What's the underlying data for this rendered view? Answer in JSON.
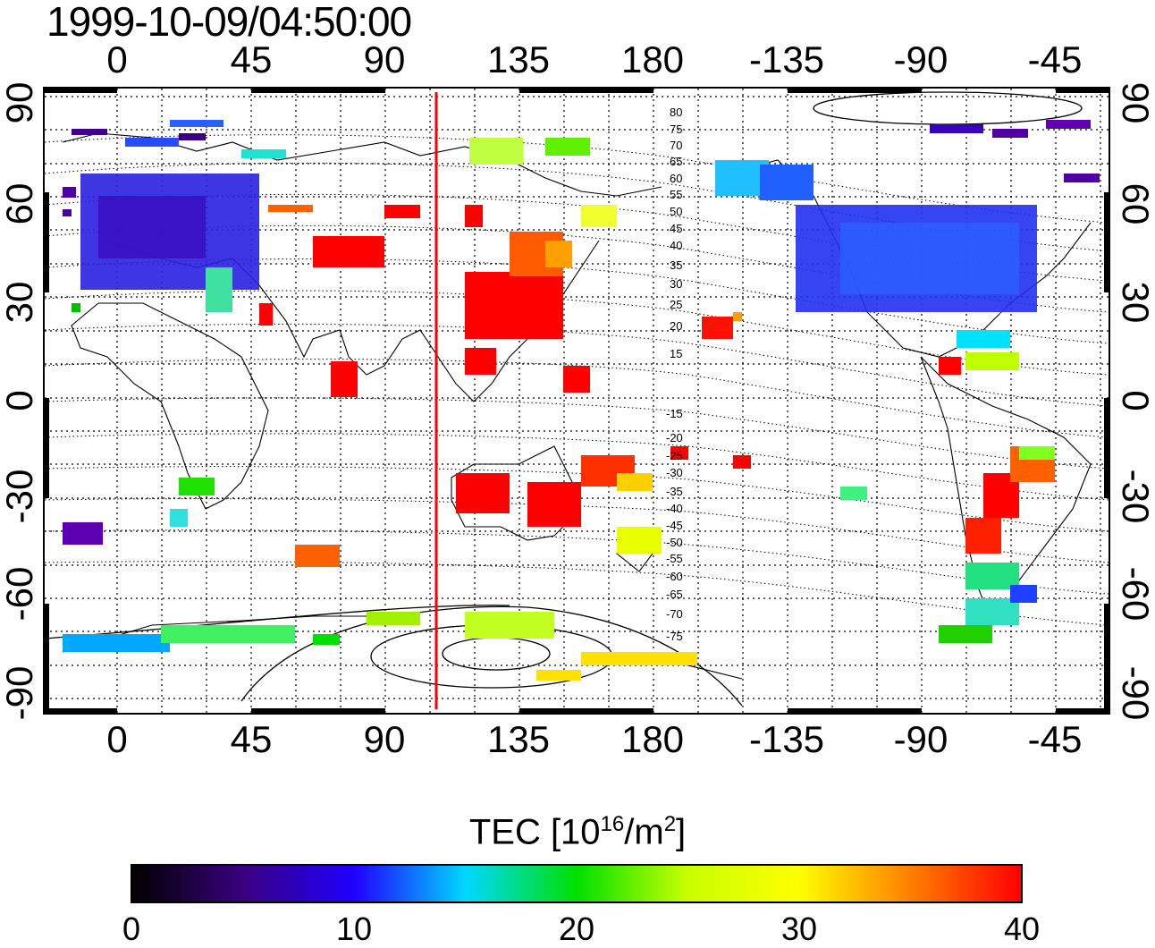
{
  "timestamp": "1999-10-09/04:50:00",
  "map": {
    "lon_ticks": [
      "0",
      "45",
      "90",
      "135",
      "180",
      "-135",
      "-90",
      "-45"
    ],
    "lat_ticks": [
      "90",
      "60",
      "30",
      "0",
      "-30",
      "-60",
      "-90"
    ],
    "contour_labels": [
      "80",
      "75",
      "70",
      "65",
      "60",
      "55",
      "50",
      "45",
      "40",
      "35",
      "30",
      "25",
      "20",
      "15",
      "-15",
      "-20",
      "-25",
      "-30",
      "-35",
      "-40",
      "-45",
      "-50",
      "-55",
      "-60",
      "-65",
      "-70",
      "-75"
    ],
    "marker_color": "#ff0000"
  },
  "colorbar": {
    "title": "TEC  [10",
    "title_exp": "16",
    "title_mid": "/m",
    "title_exp2": "2",
    "title_end": "]",
    "ticks": [
      "0",
      "10",
      "20",
      "30",
      "40"
    ],
    "colors": [
      "#000000",
      "#3a0080",
      "#2000ff",
      "#00d8ff",
      "#00e000",
      "#c8ff00",
      "#ffff00",
      "#ff8000",
      "#ff0000"
    ]
  }
}
